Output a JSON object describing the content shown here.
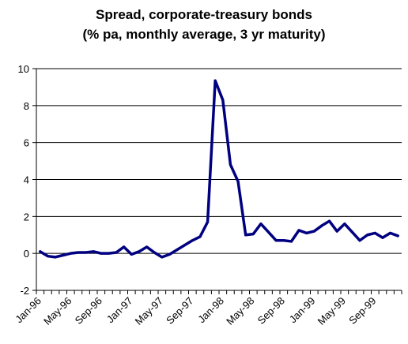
{
  "chart_data": {
    "type": "line",
    "title_lines": [
      "Spread, corporate-treasury bonds",
      "(% pa, monthly average, 3 yr maturity)"
    ],
    "xlabel": "",
    "ylabel": "",
    "ylim": [
      -2,
      10
    ],
    "yticks": [
      "-2",
      "0",
      "2",
      "4",
      "6",
      "8",
      "10"
    ],
    "grid": "horizontal",
    "legend": "none",
    "line_color": "#000080",
    "x_tick_labels": [
      "Jan-96",
      "May-96",
      "Sep-96",
      "Jan-97",
      "May-97",
      "Sep-97",
      "Jan-98",
      "May-98",
      "Sep-98",
      "Jan-99",
      "May-99",
      "Sep-99"
    ],
    "x": [
      "Jan-96",
      "Feb-96",
      "Mar-96",
      "Apr-96",
      "May-96",
      "Jun-96",
      "Jul-96",
      "Aug-96",
      "Sep-96",
      "Oct-96",
      "Nov-96",
      "Dec-96",
      "Jan-97",
      "Feb-97",
      "Mar-97",
      "Apr-97",
      "May-97",
      "Jun-97",
      "Jul-97",
      "Aug-97",
      "Sep-97",
      "Oct-97",
      "Nov-97",
      "Dec-97",
      "Jan-98",
      "Feb-98",
      "Mar-98",
      "Apr-98",
      "May-98",
      "Jun-98",
      "Jul-98",
      "Aug-98",
      "Sep-98",
      "Oct-98",
      "Nov-98",
      "Dec-98",
      "Jan-99",
      "Feb-99",
      "Mar-99",
      "Apr-99",
      "May-99",
      "Jun-99",
      "Jul-99",
      "Aug-99",
      "Sep-99",
      "Oct-99",
      "Nov-99",
      "Dec-99"
    ],
    "values": [
      0.1,
      -0.15,
      -0.2,
      -0.1,
      0.0,
      0.05,
      0.05,
      0.1,
      0.0,
      0.0,
      0.05,
      0.35,
      -0.05,
      0.1,
      0.35,
      0.05,
      -0.2,
      -0.05,
      0.2,
      0.45,
      0.7,
      0.9,
      1.7,
      9.35,
      8.3,
      4.8,
      3.9,
      1.0,
      1.05,
      1.6,
      1.15,
      0.7,
      0.7,
      0.65,
      1.25,
      1.1,
      1.2,
      1.5,
      1.75,
      1.2,
      1.6,
      1.15,
      0.7,
      1.0,
      1.1,
      0.85,
      1.1,
      0.95
    ]
  }
}
